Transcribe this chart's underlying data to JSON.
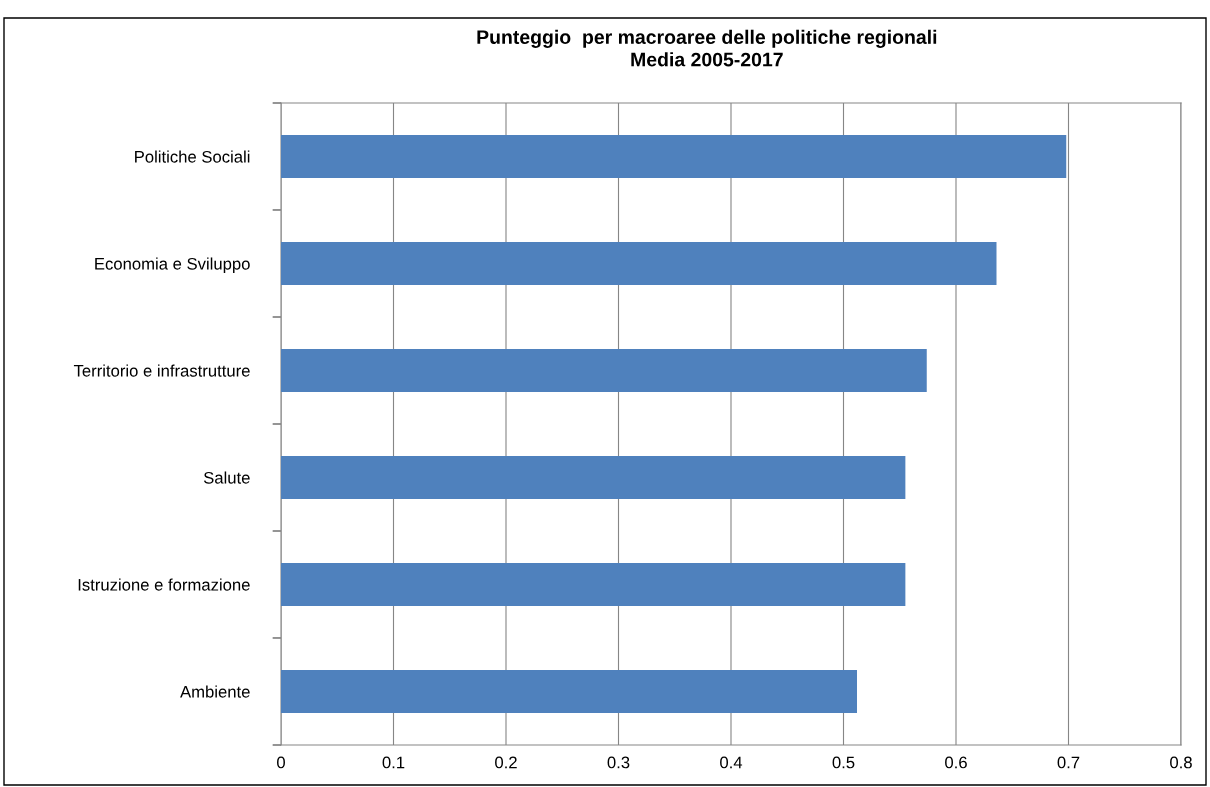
{
  "chart_data": {
    "type": "bar",
    "orientation": "horizontal",
    "title": "Punteggio  per macroaree delle politiche regionali\nMedia 2005-2017",
    "categories": [
      "Politiche Sociali",
      "Economia e Sviluppo",
      "Territorio e infrastrutture",
      "Salute",
      "Istruzione e formazione",
      "Ambiente"
    ],
    "values": [
      0.698,
      0.636,
      0.574,
      0.555,
      0.555,
      0.512
    ],
    "color": "#4f81bd",
    "xlim": [
      0,
      0.8
    ],
    "xticks": [
      0,
      0.1,
      0.2,
      0.3,
      0.4,
      0.5,
      0.6,
      0.7,
      0.8
    ],
    "grid": "x"
  }
}
